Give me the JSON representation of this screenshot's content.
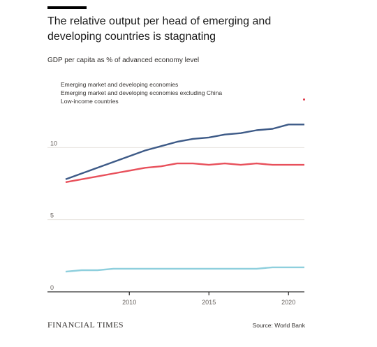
{
  "header": {
    "title": "The relative output per head of emerging and developing countries is stagnating",
    "subtitle": "GDP per capita as % of advanced economy level"
  },
  "footer": {
    "logo_text": "FINANCIAL TIMES",
    "source": "Source: World Bank"
  },
  "colors": {
    "emde": "#3d5a87",
    "emde_ex_china": "#e8505b",
    "low_income": "#8ecfdd",
    "grid": "#e6e3de",
    "axis": "#000000"
  },
  "chart_data": {
    "type": "line",
    "title": "The relative output per head of emerging and developing countries is stagnating",
    "subtitle": "GDP per capita as % of advanced economy level",
    "x_ticks": [
      "2010",
      "2015",
      "2020"
    ],
    "y_ticks": [
      "0",
      "5",
      "10"
    ],
    "xlim": [
      2006,
      2021
    ],
    "ylim": [
      0,
      12
    ],
    "grid": true,
    "legend": "top-left",
    "x": [
      2006,
      2007,
      2008,
      2009,
      2010,
      2011,
      2012,
      2013,
      2014,
      2015,
      2016,
      2017,
      2018,
      2019,
      2020,
      2021
    ],
    "series": [
      {
        "name": "Emerging market and developing economies",
        "color": "#3d5a87",
        "values": [
          7.8,
          8.2,
          8.6,
          9.0,
          9.4,
          9.8,
          10.1,
          10.4,
          10.6,
          10.7,
          10.9,
          11.0,
          11.2,
          11.3,
          11.6,
          11.6
        ]
      },
      {
        "name": "Emerging market and developing economies excluding China",
        "color": "#e8505b",
        "values": [
          7.6,
          7.8,
          8.0,
          8.2,
          8.4,
          8.6,
          8.7,
          8.9,
          8.9,
          8.8,
          8.9,
          8.8,
          8.9,
          8.8,
          8.8,
          8.8
        ]
      },
      {
        "name": "Low-income countries",
        "color": "#8ecfdd",
        "values": [
          1.4,
          1.5,
          1.5,
          1.6,
          1.6,
          1.6,
          1.6,
          1.6,
          1.6,
          1.6,
          1.6,
          1.6,
          1.6,
          1.7,
          1.7,
          1.7
        ]
      }
    ]
  }
}
